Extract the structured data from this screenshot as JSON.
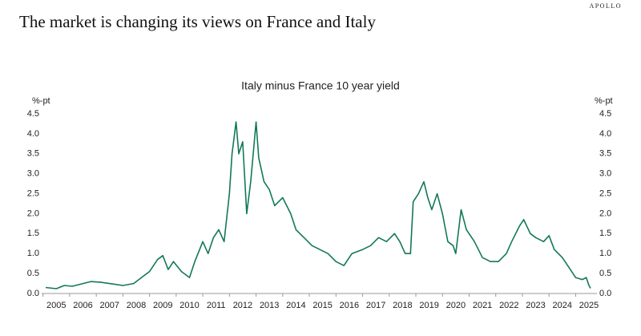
{
  "brand": "APOLLO",
  "chart_data": {
    "type": "line",
    "title": "The market is changing its views on France and Italy",
    "subtitle": "Italy minus France 10 year yield",
    "ylabel": "%-pt",
    "y2label": "%-pt",
    "x": [
      2004.6,
      2005.0,
      2005.3,
      2005.6,
      2006.0,
      2006.3,
      2006.7,
      2007.0,
      2007.5,
      2007.9,
      2008.2,
      2008.5,
      2008.8,
      2009.0,
      2009.2,
      2009.4,
      2009.7,
      2010.0,
      2010.2,
      2010.5,
      2010.7,
      2010.9,
      2011.1,
      2011.3,
      2011.5,
      2011.6,
      2011.75,
      2011.85,
      2012.0,
      2012.15,
      2012.3,
      2012.5,
      2012.6,
      2012.8,
      2013.0,
      2013.2,
      2013.5,
      2013.8,
      2014.0,
      2014.3,
      2014.6,
      2014.9,
      2015.2,
      2015.5,
      2015.8,
      2016.1,
      2016.5,
      2016.8,
      2017.1,
      2017.4,
      2017.7,
      2017.9,
      2018.1,
      2018.3,
      2018.4,
      2018.6,
      2018.8,
      2018.95,
      2019.1,
      2019.3,
      2019.5,
      2019.7,
      2019.9,
      2020.0,
      2020.2,
      2020.4,
      2020.7,
      2021.0,
      2021.3,
      2021.6,
      2021.9,
      2022.1,
      2022.4,
      2022.55,
      2022.8,
      2023.0,
      2023.3,
      2023.5,
      2023.7,
      2024.0,
      2024.3,
      2024.5,
      2024.75,
      2024.9,
      2025.0,
      2025.06
    ],
    "series": [
      {
        "name": "Italy minus France 10 year yield",
        "color": "#13785a",
        "values": [
          0.15,
          0.12,
          0.2,
          0.18,
          0.25,
          0.3,
          0.28,
          0.25,
          0.2,
          0.25,
          0.4,
          0.55,
          0.85,
          0.95,
          0.6,
          0.8,
          0.55,
          0.4,
          0.8,
          1.3,
          1.0,
          1.4,
          1.6,
          1.3,
          2.5,
          3.5,
          4.3,
          3.5,
          3.8,
          2.0,
          2.8,
          4.3,
          3.4,
          2.8,
          2.6,
          2.2,
          2.4,
          2.0,
          1.6,
          1.4,
          1.2,
          1.1,
          1.0,
          0.8,
          0.7,
          1.0,
          1.1,
          1.2,
          1.4,
          1.3,
          1.5,
          1.3,
          1.0,
          1.0,
          2.3,
          2.5,
          2.8,
          2.4,
          2.1,
          2.5,
          2.0,
          1.3,
          1.2,
          1.0,
          2.1,
          1.6,
          1.3,
          0.9,
          0.8,
          0.8,
          1.0,
          1.3,
          1.7,
          1.85,
          1.5,
          1.4,
          1.3,
          1.45,
          1.1,
          0.9,
          0.6,
          0.4,
          0.35,
          0.4,
          0.2,
          0.13
        ]
      }
    ],
    "xlim": [
      2004.45,
      2025.3
    ],
    "xticks": [
      2005,
      2006,
      2007,
      2008,
      2009,
      2010,
      2011,
      2012,
      2013,
      2014,
      2015,
      2016,
      2017,
      2018,
      2019,
      2020,
      2021,
      2022,
      2023,
      2024,
      2025
    ],
    "ylim": [
      0,
      4.5
    ],
    "yticks": [
      {
        "value": 0,
        "label": "0.0"
      },
      0.5,
      {
        "value": 1,
        "label": "1.0"
      },
      1.5,
      {
        "value": 2,
        "label": "2.0"
      },
      2.5,
      {
        "value": 3,
        "label": "3.0"
      },
      3.5,
      {
        "value": 4,
        "label": "4.0"
      },
      4.5
    ],
    "y2lim": [
      0,
      4.5
    ],
    "y2ticks": [
      {
        "value": 0,
        "label": "0.0"
      },
      0.5,
      {
        "value": 1,
        "label": "1.0"
      },
      1.5,
      {
        "value": 2,
        "label": "2.0"
      },
      2.5,
      {
        "value": 3,
        "label": "3.0"
      },
      3.5,
      {
        "value": 4,
        "label": "4.0"
      },
      4.5
    ]
  }
}
